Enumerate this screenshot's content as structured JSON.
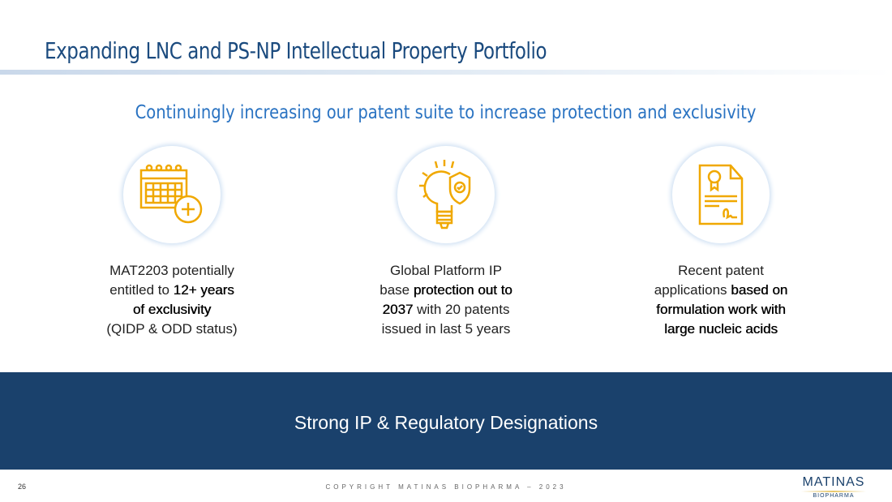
{
  "title": "Expanding LNC and PS-NP Intellectual Property Portfolio",
  "subtitle": "Continuingly increasing our patent suite to increase protection and exclusivity",
  "icon_color": "#f0a800",
  "columns": [
    {
      "icon": "calendar-plus-icon",
      "t1": "MAT2203 potentially",
      "t2": "entitled to ",
      "b1": "12+ years",
      "b2": "of exclusivity",
      "t3": "(QIDP & ODD status)"
    },
    {
      "icon": "lightbulb-shield-icon",
      "t1": "Global Platform IP",
      "t2": "base ",
      "b1": "protection out to",
      "b2": "2037",
      "t3": " with 20 patents",
      "t4": "issued in last 5 years"
    },
    {
      "icon": "certificate-document-icon",
      "t1": "Recent patent",
      "t2": "applications ",
      "b1": "based on",
      "b2": "formulation work with",
      "b3": "large nucleic acids"
    }
  ],
  "banner": "Strong IP & Regulatory Designations",
  "footer": {
    "page": "26",
    "copyright": "COPYRIGHT MATINAS BIOPHARMA – 2023",
    "logo_main": "MATINAS",
    "logo_sub": "BIOPHARMA"
  }
}
